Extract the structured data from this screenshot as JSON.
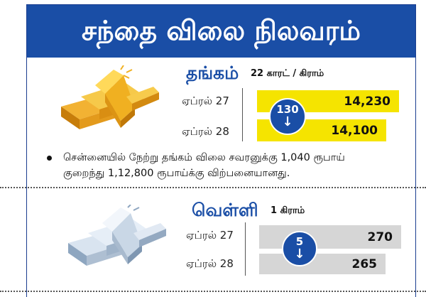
{
  "header": {
    "title": "சந்தை விலை நிலவரம்"
  },
  "gold": {
    "name": "தங்கம்",
    "unit": "22 காரட் / கிராம்",
    "rows": [
      {
        "date": "ஏப்ரல் 27",
        "value": "14,230"
      },
      {
        "date": "ஏப்ரல் 28",
        "value": "14,100"
      }
    ],
    "change": "130",
    "change_icon": "arrow-down-icon",
    "note_line1": "சென்னையில் நேற்று தங்கம் விலை சவரனுக்கு 1,040 ரூபாய்",
    "note_line2": "குறைந்து 1,12,800 ரூபாய்க்கு விற்பனையானது.",
    "bar_color": "#f5e400",
    "bar_level": [
      1.0,
      0.91
    ]
  },
  "silver": {
    "name": "வெள்ளி",
    "unit": "1 கிராம்",
    "rows": [
      {
        "date": "ஏப்ரல் 27",
        "value": "270"
      },
      {
        "date": "ஏப்ரல் 28",
        "value": "265"
      }
    ],
    "change": "5",
    "change_icon": "arrow-down-icon",
    "bar_color": "#d6d6d6",
    "bar_level": [
      1.0,
      0.9
    ]
  },
  "colors": {
    "accent": "#1a4ea6",
    "gold_bar": "#f5e400",
    "silver_bar": "#d6d6d6"
  }
}
